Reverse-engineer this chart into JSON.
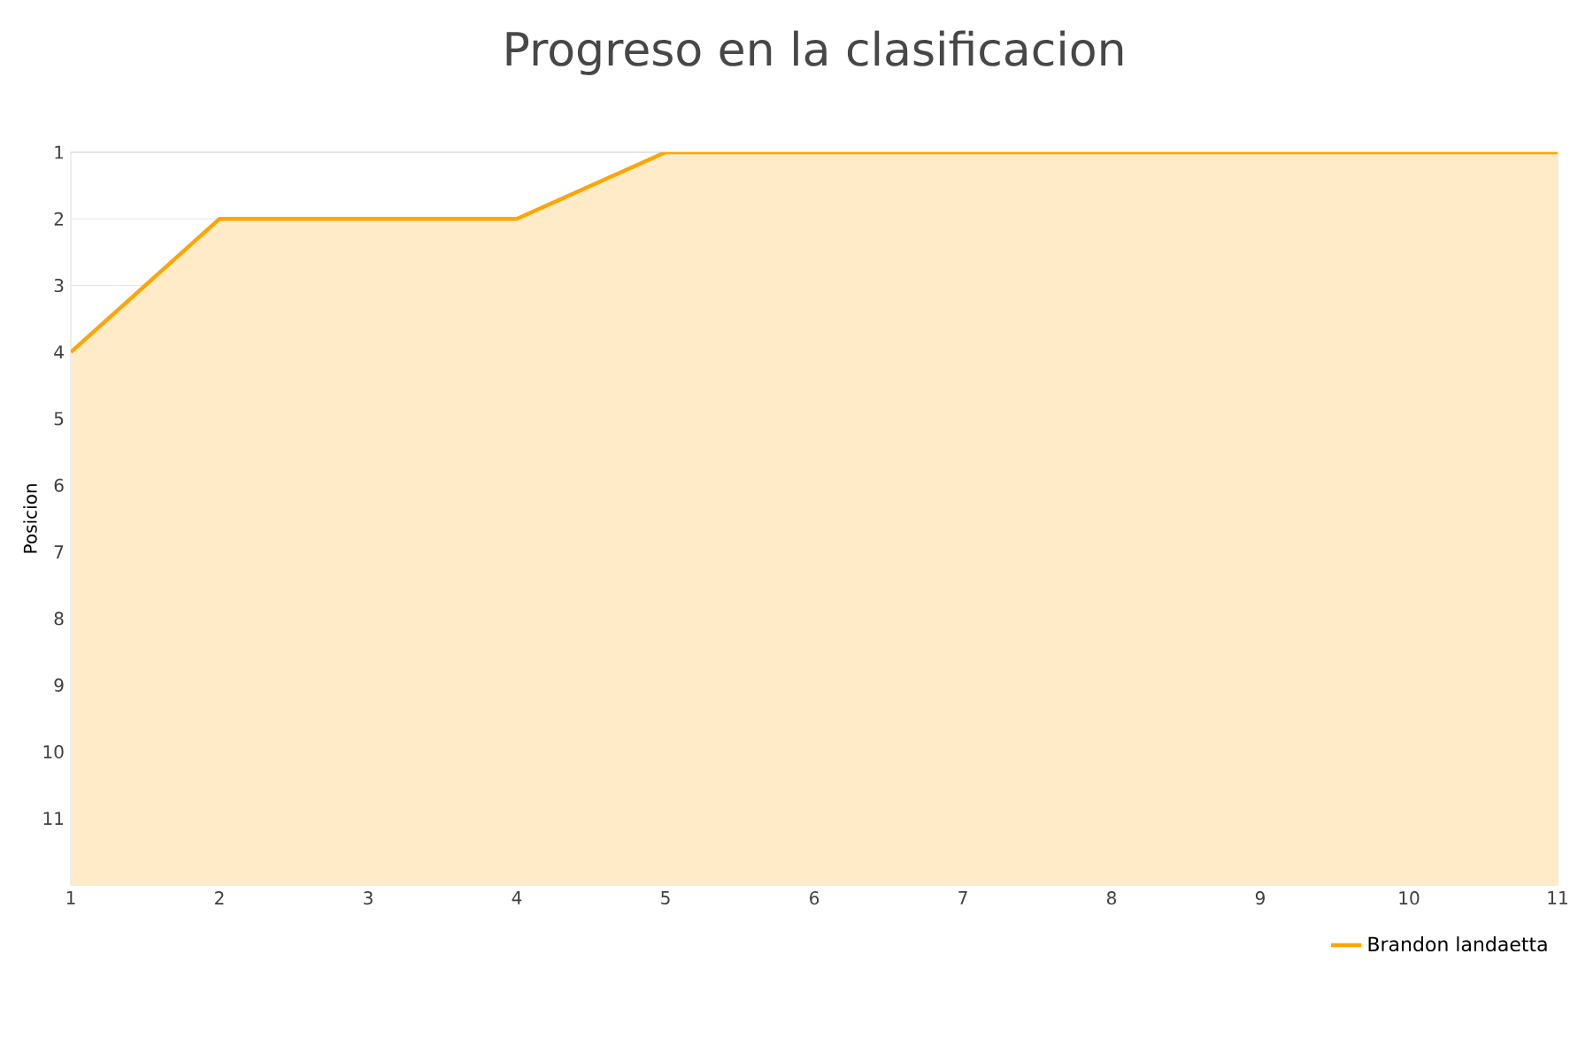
{
  "chart_data": {
    "type": "area",
    "title": "Progreso en la clasificacion",
    "ylabel": "Posicion",
    "x": [
      1,
      2,
      3,
      4,
      5,
      6,
      7,
      8,
      9,
      10,
      11
    ],
    "series": [
      {
        "name": "Brandon landaetta",
        "color": "#ffa500",
        "values": [
          4,
          2,
          2,
          2,
          1,
          1,
          1,
          1,
          1,
          1,
          1
        ]
      }
    ],
    "xlim": [
      1,
      11
    ],
    "xticks": [
      1,
      2,
      3,
      4,
      5,
      6,
      7,
      8,
      9,
      10,
      11
    ],
    "ylim": [
      12,
      1
    ],
    "yticks": [
      1,
      2,
      3,
      4,
      5,
      6,
      7,
      8,
      9,
      10,
      11
    ],
    "grid": "y",
    "legend": "bottom right",
    "marker": "none",
    "line_style": "solid"
  }
}
